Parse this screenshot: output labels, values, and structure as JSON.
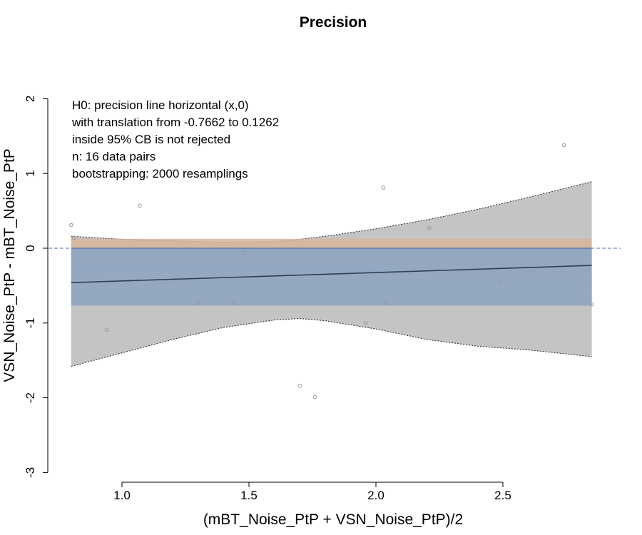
{
  "chart_data": {
    "type": "scatter",
    "title": "Precision",
    "xlabel": "(mBT_Noise_PtP + VSN_Noise_PtP)/2",
    "ylabel": "VSN_Noise_PtP - mBT_Noise_PtP",
    "xlim": [
      0.8,
      2.85
    ],
    "ylim": [
      -3,
      2
    ],
    "x_ticks": [
      "1.0",
      "1.5",
      "2.0",
      "2.5"
    ],
    "y_ticks": [
      "-3",
      "-2",
      "-1",
      "0",
      "1",
      "2"
    ],
    "annotations": [
      "H0: precision line horizontal (x,0)",
      "with translation from -0.7662 to 0.1262",
      "inside 95% CB is not rejected",
      "n: 16 data pairs",
      "bootstrapping: 2000 resamplings"
    ],
    "points": [
      {
        "x": 0.8,
        "y": 0.31
      },
      {
        "x": 0.94,
        "y": -1.09
      },
      {
        "x": 1.07,
        "y": 0.57
      },
      {
        "x": 1.3,
        "y": -0.73
      },
      {
        "x": 1.44,
        "y": -0.73
      },
      {
        "x": 1.48,
        "y": -0.06
      },
      {
        "x": 1.7,
        "y": -1.84
      },
      {
        "x": 1.76,
        "y": -1.99
      },
      {
        "x": 1.96,
        "y": -1.0
      },
      {
        "x": 2.03,
        "y": 0.81
      },
      {
        "x": 2.04,
        "y": -0.73
      },
      {
        "x": 2.21,
        "y": 0.27
      },
      {
        "x": 2.49,
        "y": -0.44
      },
      {
        "x": 2.74,
        "y": 1.38
      },
      {
        "x": 2.85,
        "y": -0.75
      },
      {
        "x": 0.81,
        "y": 0.14
      }
    ],
    "regression_line": {
      "x": [
        0.8,
        2.85
      ],
      "y": [
        -0.46,
        -0.23
      ]
    },
    "confidence_band": {
      "x": [
        0.8,
        1.0,
        1.2,
        1.4,
        1.6,
        1.7,
        1.8,
        2.0,
        2.2,
        2.4,
        2.6,
        2.85
      ],
      "upper": [
        0.16,
        0.12,
        0.1,
        0.08,
        0.09,
        0.12,
        0.16,
        0.26,
        0.38,
        0.52,
        0.68,
        0.89
      ],
      "lower": [
        -1.58,
        -1.4,
        -1.22,
        -1.06,
        -0.96,
        -0.94,
        -0.97,
        -1.08,
        -1.22,
        -1.31,
        -1.36,
        -1.45
      ]
    },
    "translation_band": {
      "lower": -0.7662,
      "upper": 0.1262
    },
    "reference_line_y": 0,
    "colors": {
      "confidence_band": "#c4c4c4",
      "translation_band_upper": "#d9b59b",
      "translation_band_lower": "#8fa6c2",
      "regression_line": "#2f3e55",
      "zero_line": "#4a6fa5",
      "points": "#999999"
    }
  }
}
